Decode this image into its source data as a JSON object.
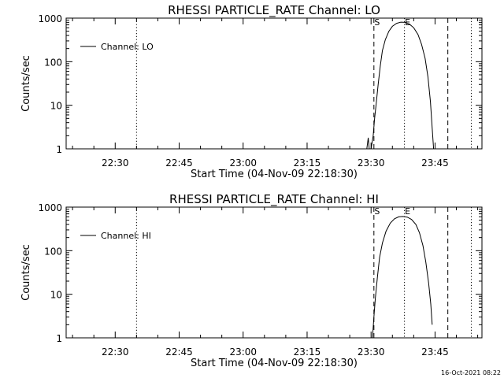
{
  "timestamp": "16-Oct-2021 08:22",
  "chart_data": [
    {
      "type": "line",
      "title": "RHESSI PARTICLE_RATE Channel: LO",
      "xlabel": "Start Time (04-Nov-09 22:18:30)",
      "ylabel": "Counts/sec",
      "y_scale": "log",
      "ylim": [
        1,
        1000
      ],
      "xlim": [
        "22:18:30",
        "23:56:00"
      ],
      "x_ticks": [
        "22:30",
        "22:45",
        "23:00",
        "23:15",
        "23:30",
        "23:45"
      ],
      "y_ticks": [
        "1",
        "10",
        "100",
        "1000"
      ],
      "legend": {
        "placement": "top-left",
        "entries": [
          "Channel: LO"
        ]
      },
      "grid": false,
      "markers": [
        {
          "label": "",
          "time": "22:35:00",
          "style": "dotted"
        },
        {
          "label": "S",
          "time": "23:30:40",
          "style": "dashed"
        },
        {
          "label": "E",
          "time": "23:37:50",
          "style": "dotted"
        },
        {
          "label": "",
          "time": "23:48:00",
          "style": "dashed"
        },
        {
          "label": "",
          "time": "23:53:30",
          "style": "dotted"
        }
      ],
      "series": [
        {
          "name": "Channel: LO",
          "points": [
            [
              "23:29:00",
              1
            ],
            [
              "23:29:20",
              1.8
            ],
            [
              "23:29:35",
              1
            ],
            [
              "23:30:00",
              1
            ],
            [
              "23:30:30",
              2
            ],
            [
              "23:30:50",
              5
            ],
            [
              "23:31:10",
              10
            ],
            [
              "23:31:40",
              30
            ],
            [
              "23:32:10",
              80
            ],
            [
              "23:32:40",
              180
            ],
            [
              "23:33:20",
              320
            ],
            [
              "23:34:10",
              500
            ],
            [
              "23:35:00",
              650
            ],
            [
              "23:36:00",
              760
            ],
            [
              "23:37:00",
              810
            ],
            [
              "23:38:00",
              800
            ],
            [
              "23:39:00",
              730
            ],
            [
              "23:40:00",
              600
            ],
            [
              "23:41:00",
              420
            ],
            [
              "23:41:50",
              250
            ],
            [
              "23:42:40",
              120
            ],
            [
              "23:43:20",
              45
            ],
            [
              "23:43:55",
              12
            ],
            [
              "23:44:20",
              3
            ],
            [
              "23:44:40",
              1
            ]
          ]
        }
      ]
    },
    {
      "type": "line",
      "title": "RHESSI PARTICLE_RATE Channel: HI",
      "xlabel": "Start Time (04-Nov-09 22:18:30)",
      "ylabel": "Counts/sec",
      "y_scale": "log",
      "ylim": [
        1,
        1000
      ],
      "xlim": [
        "22:18:30",
        "23:56:00"
      ],
      "x_ticks": [
        "22:30",
        "22:45",
        "23:00",
        "23:15",
        "23:30",
        "23:45"
      ],
      "y_ticks": [
        "1",
        "10",
        "100",
        "1000"
      ],
      "legend": {
        "placement": "top-left",
        "entries": [
          "Channel: HI"
        ]
      },
      "grid": false,
      "markers": [
        {
          "label": "",
          "time": "22:35:00",
          "style": "dotted"
        },
        {
          "label": "S",
          "time": "23:30:40",
          "style": "dashed"
        },
        {
          "label": "E",
          "time": "23:37:50",
          "style": "dotted"
        },
        {
          "label": "",
          "time": "23:48:00",
          "style": "dashed"
        },
        {
          "label": "",
          "time": "23:53:30",
          "style": "dotted"
        }
      ],
      "series": [
        {
          "name": "Channel: HI",
          "points": [
            [
              "23:30:20",
              1
            ],
            [
              "23:30:40",
              3
            ],
            [
              "23:31:00",
              8
            ],
            [
              "23:31:30",
              25
            ],
            [
              "23:32:00",
              70
            ],
            [
              "23:32:40",
              150
            ],
            [
              "23:33:30",
              280
            ],
            [
              "23:34:30",
              430
            ],
            [
              "23:35:30",
              540
            ],
            [
              "23:36:30",
              600
            ],
            [
              "23:37:30",
              610
            ],
            [
              "23:38:30",
              590
            ],
            [
              "23:39:30",
              520
            ],
            [
              "23:40:30",
              400
            ],
            [
              "23:41:20",
              260
            ],
            [
              "23:42:10",
              130
            ],
            [
              "23:42:50",
              55
            ],
            [
              "23:43:30",
              18
            ],
            [
              "23:44:00",
              6
            ],
            [
              "23:44:20",
              2
            ]
          ]
        }
      ]
    }
  ]
}
